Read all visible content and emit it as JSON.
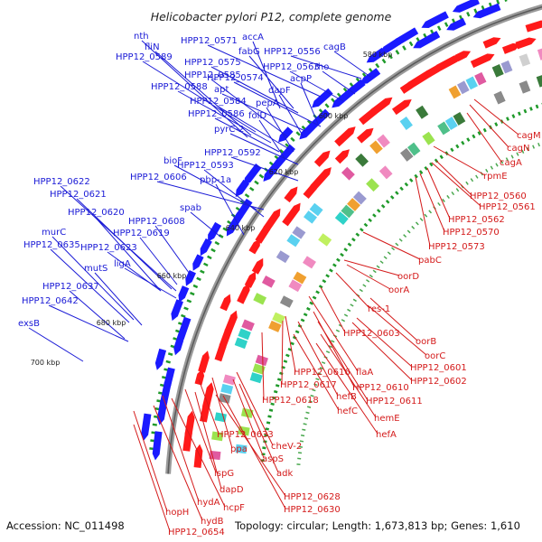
{
  "title": "Helicobacter pylori P12, complete genome",
  "footer": {
    "accession": "Accession: NC_011498",
    "summary": "Topology: circular; Length: 1,673,813 bp; Genes: 1,610"
  },
  "colors": {
    "forward_labels": "#1a1ad6",
    "reverse_labels": "#d41a1a",
    "forward_arrows": "#1a1aff",
    "reverse_arrows": "#ff1a1a",
    "backbone": "#8c8c8c",
    "gc_ticks": "#1f9a2a"
  },
  "scale_ticks": [
    "580 kbp",
    "600 kbp",
    "620 kbp",
    "640 kbp",
    "660 kbp",
    "680 kbp",
    "700 kbp"
  ],
  "forward_genes": [
    "nth",
    "fliN",
    "HPP12_0589",
    "HPP12_0571",
    "accA",
    "fabG",
    "HPP12_0556",
    "cagB",
    "HPP12_0575",
    "HPP12_0563",
    "rho",
    "HPP12_0585",
    "HPP12_0574",
    "acpP",
    "HPP12_0588",
    "apt",
    "dapF",
    "HPP12_0584",
    "pepA",
    "HPP12_0586",
    "folD",
    "pyrC-2",
    "HPP12_0592",
    "bioF",
    "HPP12_0593",
    "HPP12_0606",
    "pbp-1a",
    "HPP12_0622",
    "HPP12_0621",
    "spab",
    "HPP12_0620",
    "HPP12_0608",
    "HPP12_0619",
    "murC",
    "HPP12_0635",
    "HPP12_0623",
    "ligA",
    "mutS",
    "HPP12_0637",
    "HPP12_0642",
    "exsB"
  ],
  "reverse_genes": [
    "cagM",
    "cagN",
    "cagA",
    "rpmE",
    "HPP12_0560",
    "HPP12_0561",
    "HPP12_0562",
    "HPP12_0570",
    "HPP12_0573",
    "pabC",
    "oorD",
    "oorA",
    "res-1",
    "HPP12_0603",
    "oorB",
    "oorC",
    "HPP12_0601",
    "HPP12_0602",
    "flaA",
    "HPP12_0616",
    "HPP12_0617",
    "HPP12_0610",
    "hefB",
    "HPP12_0611",
    "HPP12_0618",
    "hefC",
    "hemE",
    "hefA",
    "HPP12_0633",
    "cheV-2",
    "ppa",
    "aspS",
    "adk",
    "ispG",
    "dapD",
    "HPP12_0628",
    "HPP12_0630",
    "hydA",
    "hcpF",
    "hopH",
    "hydB",
    "HPP12_0654"
  ]
}
